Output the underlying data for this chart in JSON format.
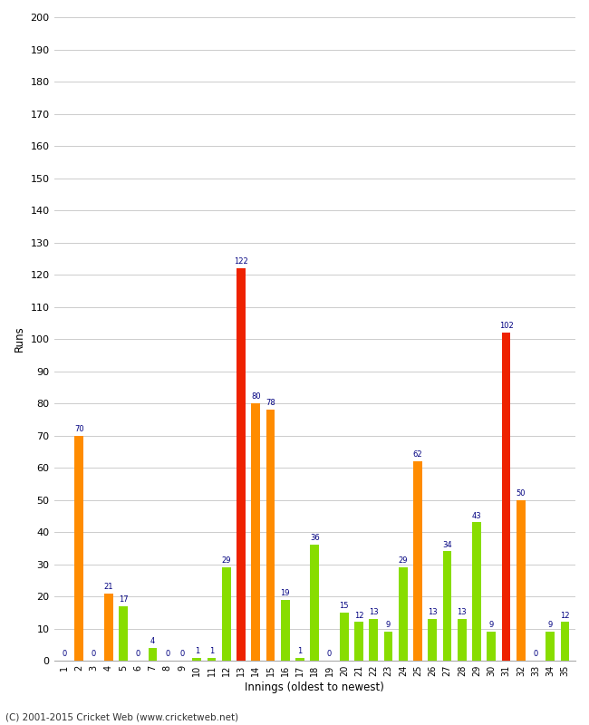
{
  "innings": [
    1,
    2,
    3,
    4,
    5,
    6,
    7,
    8,
    9,
    10,
    11,
    12,
    13,
    14,
    15,
    16,
    17,
    18,
    19,
    20,
    21,
    22,
    23,
    24,
    25,
    26,
    27,
    28,
    29,
    30,
    31,
    32,
    33,
    34,
    35
  ],
  "values": [
    0,
    70,
    0,
    21,
    17,
    0,
    4,
    0,
    0,
    1,
    1,
    29,
    122,
    80,
    78,
    19,
    1,
    36,
    0,
    15,
    12,
    13,
    9,
    29,
    62,
    13,
    34,
    13,
    43,
    9,
    102,
    50,
    0,
    9,
    12
  ],
  "colors": [
    "green",
    "orange",
    "green",
    "orange",
    "green",
    "green",
    "green",
    "green",
    "green",
    "green",
    "green",
    "green",
    "red",
    "orange",
    "orange",
    "green",
    "green",
    "green",
    "green",
    "green",
    "green",
    "green",
    "green",
    "green",
    "orange",
    "green",
    "green",
    "green",
    "green",
    "green",
    "red",
    "orange",
    "green",
    "green",
    "green"
  ],
  "xlabel": "Innings (oldest to newest)",
  "ylabel": "Runs",
  "ylim": [
    0,
    200
  ],
  "yticks": [
    0,
    10,
    20,
    30,
    40,
    50,
    60,
    70,
    80,
    90,
    100,
    110,
    120,
    130,
    140,
    150,
    160,
    170,
    180,
    190,
    200
  ],
  "bar_color_orange": "#FF8C00",
  "bar_color_red": "#EE2200",
  "bar_color_green": "#88DD00",
  "bg_color": "#FFFFFF",
  "label_color": "#000080",
  "footer": "(C) 2001-2015 Cricket Web (www.cricketweb.net)"
}
